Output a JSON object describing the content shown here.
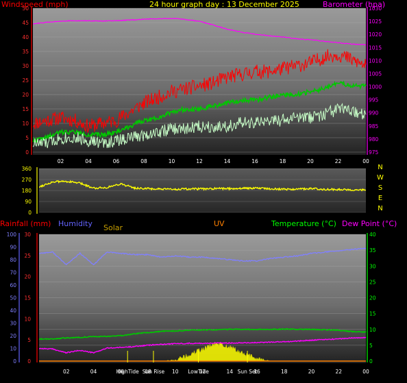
{
  "header": {
    "windspeed_label": "Windspeed (mph)",
    "title": "24 hour graph day : 13 December 2025",
    "barometer_label": "Barometer (hpa)"
  },
  "legend": {
    "rainfall": "Rainfall (mm)",
    "humidity": "Humidity",
    "solar": "Solar",
    "uv": "UV",
    "temperature": "Temperature (°C)",
    "dewpoint": "Dew Point (°C)"
  },
  "compass": [
    "N",
    "W",
    "S",
    "E",
    "N"
  ],
  "time_ticks": [
    "02",
    "04",
    "06",
    "08",
    "10",
    "12",
    "14",
    "16",
    "18",
    "20",
    "22",
    "00"
  ],
  "events": [
    "HighTide",
    "Sun Rise",
    "LowTide",
    "Sun Set"
  ],
  "colors": {
    "wind_gust": "#ff0000",
    "wind_avg": "#00c800",
    "wind_speed": "#c8ffc8",
    "barometer": "#ff00ff",
    "direction": "#ffff00",
    "humidity": "#8080ff",
    "temperature": "#00c800",
    "dewpoint": "#ff00ff",
    "solar": "#ffff00",
    "rain": "#ff0000",
    "uv": "#ff8000",
    "axis_temp": "#00ff00"
  },
  "chart_data": [
    {
      "type": "line",
      "title": "24 hour graph day : 13 December 2025",
      "x": [
        0,
        1,
        2,
        3,
        4,
        5,
        6,
        7,
        8,
        9,
        10,
        11,
        12,
        13,
        14,
        15,
        16,
        17,
        18,
        19,
        20,
        21,
        22,
        23,
        24
      ],
      "x_ticks": [
        "02",
        "04",
        "06",
        "08",
        "10",
        "12",
        "14",
        "16",
        "18",
        "20",
        "22",
        "00"
      ],
      "ylabel": "Windspeed (mph)",
      "y2label": "Barometer (hpa)",
      "ylim": [
        0,
        50
      ],
      "y2lim": [
        975,
        1030
      ],
      "y_ticks": [
        0,
        5,
        10,
        15,
        20,
        25,
        30,
        35,
        40,
        45,
        50
      ],
      "y2_ticks": [
        975,
        980,
        985,
        990,
        995,
        1000,
        1005,
        1010,
        1015,
        1020,
        1025,
        1030
      ],
      "series": [
        {
          "key": "gust",
          "axis": "left",
          "noise": 2.5,
          "values": [
            10,
            11,
            12,
            11,
            9,
            10,
            11,
            14,
            17,
            19,
            21,
            22,
            23,
            24,
            26,
            27,
            28,
            28,
            29,
            30,
            31,
            33,
            34,
            32,
            30
          ]
        },
        {
          "key": "avg",
          "axis": "left",
          "noise": 0.8,
          "values": [
            4,
            5,
            7,
            7,
            6,
            6,
            7,
            9,
            11,
            12,
            14,
            15,
            15,
            16,
            17,
            18,
            18,
            19,
            20,
            20,
            21,
            22,
            24,
            23,
            23
          ]
        },
        {
          "key": "speed",
          "axis": "left",
          "noise": 2.2,
          "values": [
            3,
            3,
            5,
            5,
            4,
            3,
            4,
            5,
            6,
            7,
            8,
            8,
            9,
            9,
            9,
            10,
            10,
            11,
            11,
            12,
            12,
            13,
            15,
            14,
            13
          ]
        },
        {
          "key": "baro",
          "axis": "right",
          "noise": 0.15,
          "values": [
            1024,
            1024.6,
            1025.1,
            1025.2,
            1025.2,
            1025.1,
            1025.2,
            1025.5,
            1025.8,
            1026,
            1026.1,
            1025.7,
            1025,
            1023.6,
            1022,
            1020.9,
            1020.1,
            1019.5,
            1019,
            1018.3,
            1017.9,
            1017.4,
            1016.8,
            1016.3,
            1016
          ]
        }
      ]
    },
    {
      "type": "line",
      "ylabel": "Wind direction",
      "compass_labels": [
        "N",
        "W",
        "S",
        "E",
        "N"
      ],
      "ylim": [
        0,
        360
      ],
      "y_ticks": [
        0,
        90,
        180,
        270,
        360
      ],
      "x": [
        0,
        1,
        2,
        3,
        4,
        5,
        6,
        7,
        8,
        9,
        10,
        11,
        12,
        13,
        14,
        15,
        16,
        17,
        18,
        19,
        20,
        21,
        22,
        23,
        24
      ],
      "series": [
        {
          "key": "direction",
          "noise": 8,
          "values": [
            210,
            250,
            255,
            240,
            200,
            205,
            235,
            200,
            195,
            190,
            190,
            192,
            193,
            195,
            196,
            198,
            200,
            195,
            190,
            192,
            195,
            190,
            188,
            186,
            185
          ]
        }
      ]
    },
    {
      "type": "line",
      "legend": [
        "Rainfall (mm)",
        "Humidity",
        "Solar",
        "UV",
        "Temperature (°C)",
        "Dew Point (°C)"
      ],
      "x": [
        0,
        1,
        2,
        3,
        4,
        5,
        6,
        7,
        8,
        9,
        10,
        11,
        12,
        13,
        14,
        15,
        16,
        17,
        18,
        19,
        20,
        21,
        22,
        23,
        24
      ],
      "humidity_ticks": [
        0,
        10,
        20,
        30,
        40,
        50,
        60,
        70,
        80,
        90,
        100
      ],
      "rain_ticks": [
        0,
        5,
        10,
        15,
        20,
        25,
        30
      ],
      "temp_ticks": [
        0,
        5,
        10,
        15,
        20,
        25,
        30,
        35,
        40
      ],
      "humidity_lim": [
        0,
        100
      ],
      "rain_lim": [
        0,
        30
      ],
      "temp_lim": [
        0,
        40
      ],
      "series": [
        {
          "key": "humidity",
          "axis": "humidity",
          "noise": 0.4,
          "values": [
            85,
            86,
            76,
            85,
            76,
            86,
            85,
            84,
            84,
            82,
            83,
            82,
            82,
            81,
            80,
            79,
            79,
            81,
            82,
            83,
            85,
            86,
            87,
            88,
            89
          ]
        },
        {
          "key": "temperature",
          "axis": "temp",
          "noise": 0.15,
          "values": [
            7,
            7,
            7.3,
            7.5,
            7.7,
            7.8,
            8,
            8.6,
            9,
            9.4,
            9.5,
            9.7,
            9.8,
            9.9,
            10,
            10,
            10,
            10,
            10.1,
            10,
            10,
            9.9,
            9.7,
            9.3,
            9.2
          ]
        },
        {
          "key": "dewpoint",
          "axis": "temp",
          "noise": 0.15,
          "values": [
            4,
            3.8,
            2.6,
            3.4,
            2.6,
            4.1,
            4.3,
            4.6,
            5,
            5.3,
            5.5,
            5.6,
            5.6,
            5.7,
            5.7,
            5.8,
            5.8,
            6,
            6.1,
            6.3,
            6.6,
            6.8,
            7,
            7.3,
            7.4
          ]
        },
        {
          "key": "solar",
          "axis": "temp",
          "noise": 0.8,
          "values": [
            0,
            0,
            0,
            0,
            0,
            0,
            0,
            0,
            0,
            0,
            0.3,
            1.8,
            3.8,
            5.5,
            4.5,
            2.3,
            0.8,
            0,
            0,
            0,
            0,
            0,
            0,
            0,
            0
          ]
        },
        {
          "key": "rain",
          "axis": "rain",
          "noise": 0,
          "values": [
            0,
            0,
            0,
            0,
            0,
            0,
            0,
            0,
            0,
            0,
            0,
            0,
            0,
            0,
            0,
            0,
            0,
            0,
            0,
            0,
            0,
            0,
            0,
            0,
            0
          ]
        }
      ],
      "event_times": [
        6.5,
        8.4,
        11.7,
        15.3
      ]
    }
  ]
}
